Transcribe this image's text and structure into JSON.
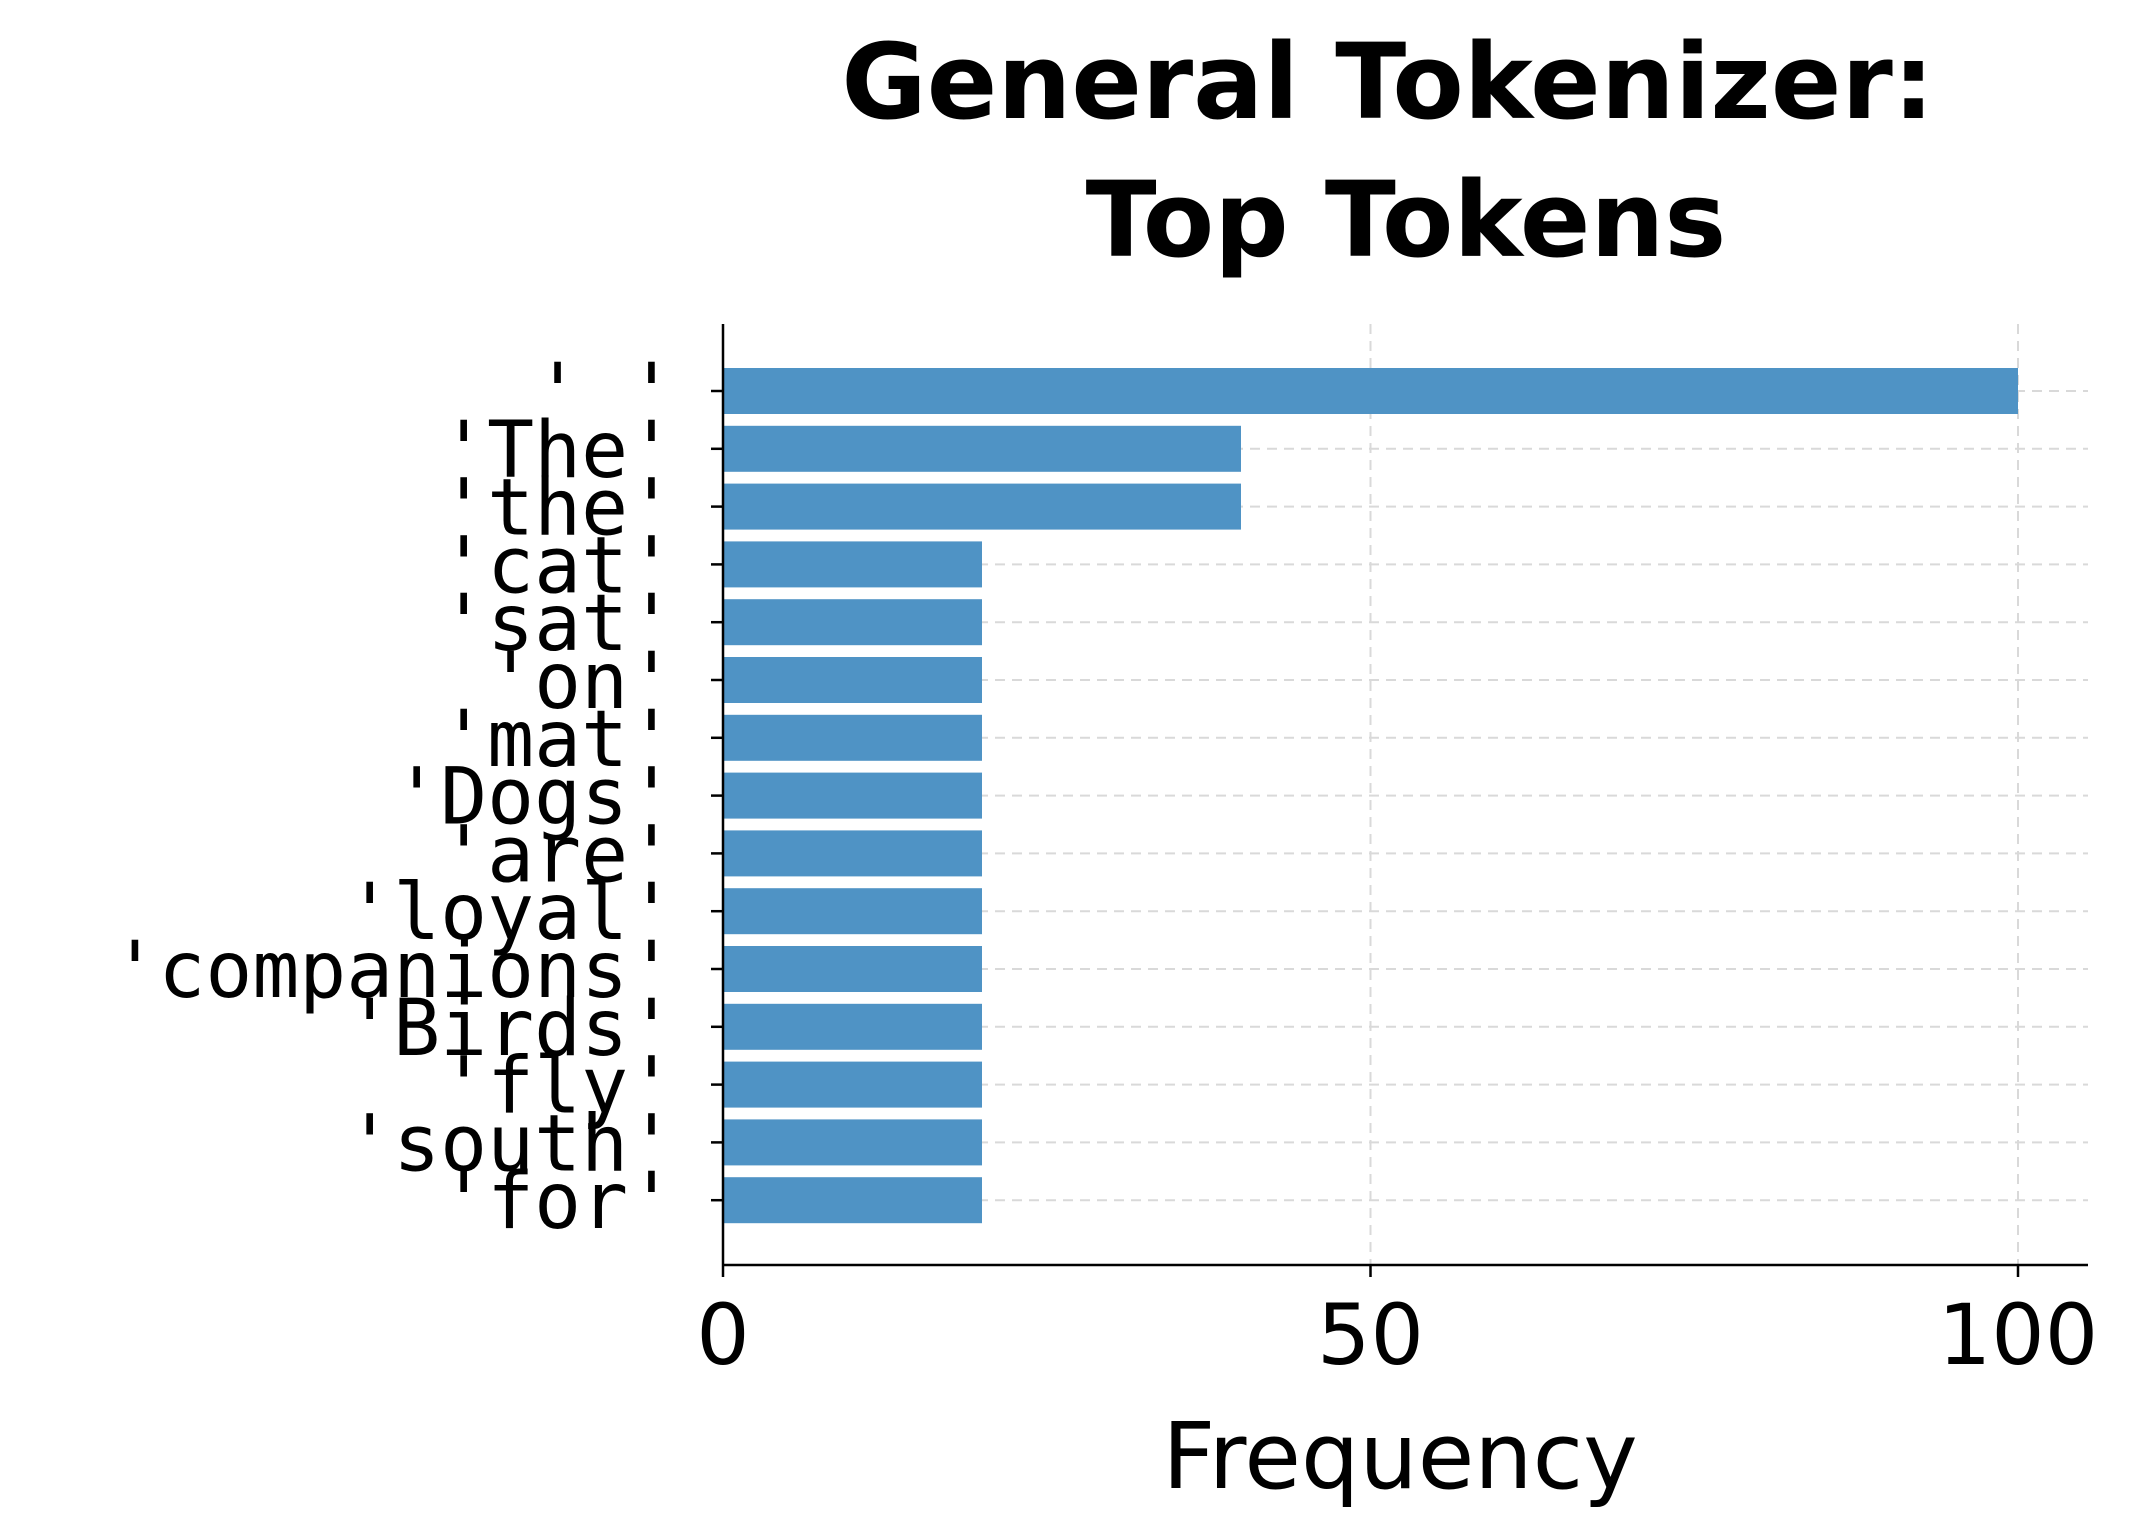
{
  "chart_data": {
    "type": "bar",
    "orientation": "horizontal",
    "title": "General Tokenizer:\nTop Tokens",
    "xlabel": "Frequency",
    "ylabel": "",
    "categories": [
      "' '",
      "'The'",
      "'the'",
      "'cat'",
      "'sat'",
      "'on'",
      "'mat'",
      "'Dogs'",
      "'are'",
      "'loyal'",
      "'companions'",
      "'Birds'",
      "'fly'",
      "'south'",
      "'for'"
    ],
    "values": [
      100,
      40,
      40,
      20,
      20,
      20,
      20,
      20,
      20,
      20,
      20,
      20,
      20,
      20,
      20
    ],
    "xlim": [
      0,
      105
    ],
    "xticks": [
      0,
      50,
      100
    ],
    "xtick_labels": [
      "0",
      "50",
      "100"
    ],
    "grid": true,
    "bar_color": "#4f93c5",
    "legend": "none"
  }
}
